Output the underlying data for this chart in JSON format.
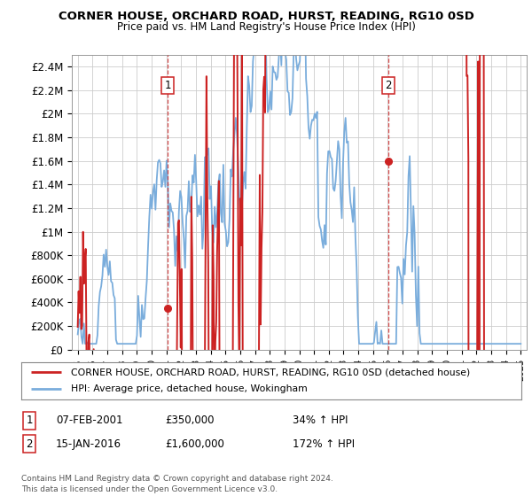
{
  "title": "CORNER HOUSE, ORCHARD ROAD, HURST, READING, RG10 0SD",
  "subtitle": "Price paid vs. HM Land Registry's House Price Index (HPI)",
  "ylim": [
    0,
    2500000
  ],
  "yticks": [
    0,
    200000,
    400000,
    600000,
    800000,
    1000000,
    1200000,
    1400000,
    1600000,
    1800000,
    2000000,
    2200000,
    2400000
  ],
  "ytick_labels": [
    "£0",
    "£200K",
    "£400K",
    "£600K",
    "£800K",
    "£1M",
    "£1.2M",
    "£1.4M",
    "£1.6M",
    "£1.8M",
    "£2M",
    "£2.2M",
    "£2.4M"
  ],
  "hpi_color": "#7aaddc",
  "sale_color": "#cc2222",
  "dashed_color": "#cc2222",
  "grid_color": "#cccccc",
  "background_color": "#ffffff",
  "sale1_year": 2001.08,
  "sale1_price": 350000,
  "sale2_year": 2016.04,
  "sale2_price": 1600000,
  "legend_house_label": "CORNER HOUSE, ORCHARD ROAD, HURST, READING, RG10 0SD (detached house)",
  "legend_hpi_label": "HPI: Average price, detached house, Wokingham",
  "note1_date": "07-FEB-2001",
  "note1_price": "£350,000",
  "note1_hpi": "34% ↑ HPI",
  "note2_date": "15-JAN-2016",
  "note2_price": "£1,600,000",
  "note2_hpi": "172% ↑ HPI",
  "footer": "Contains HM Land Registry data © Crown copyright and database right 2024.\nThis data is licensed under the Open Government Licence v3.0."
}
